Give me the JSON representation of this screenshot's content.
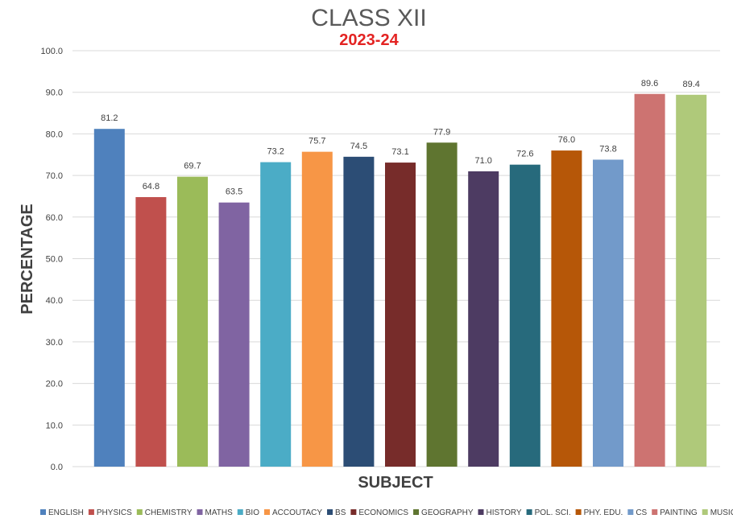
{
  "chart_data": {
    "type": "bar",
    "title": "CLASS XII",
    "subtitle": "2023-24",
    "xlabel": "SUBJECT",
    "ylabel": "PERCENTAGE",
    "ylim": [
      0,
      100
    ],
    "yticks": [
      "0.0",
      "10.0",
      "20.0",
      "30.0",
      "40.0",
      "50.0",
      "60.0",
      "70.0",
      "80.0",
      "90.0",
      "100.0"
    ],
    "grid": true,
    "legend_position": "bottom",
    "categories": [
      "ENGLISH",
      "PHYSICS",
      "CHEMISTRY",
      "MATHS",
      "BIO",
      "ACCOUTACY",
      "BS",
      "ECONOMICS",
      "GEOGRAPHY",
      "HISTORY",
      "POL. SCI.",
      "PHY. EDU.",
      "CS",
      "PAINTING",
      "MUSIC"
    ],
    "values": [
      81.2,
      64.8,
      69.7,
      63.5,
      73.2,
      75.7,
      74.5,
      73.1,
      77.9,
      71.0,
      72.6,
      76.0,
      73.8,
      89.6,
      89.4
    ],
    "value_labels": [
      "81.2",
      "64.8",
      "69.7",
      "63.5",
      "73.2",
      "75.7",
      "74.5",
      "73.1",
      "77.9",
      "71.0",
      "72.6",
      "76.0",
      "73.8",
      "89.6",
      "89.4"
    ],
    "colors": [
      "#4f81bd",
      "#c0504d",
      "#9bbb59",
      "#8064a2",
      "#4bacc6",
      "#f79646",
      "#2c4d75",
      "#772c2a",
      "#5f7530",
      "#4d3b62",
      "#276a7c",
      "#b65708",
      "#729aca",
      "#cd7371",
      "#afc97a"
    ]
  },
  "colors": {
    "subtitle": "#e32322",
    "grid": "#d9d9d9",
    "title": "#595959"
  }
}
